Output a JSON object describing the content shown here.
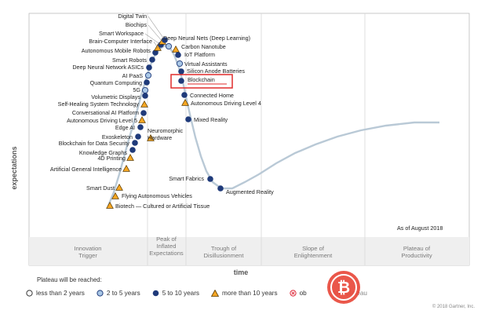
{
  "chart_data": {
    "type": "scatter",
    "title": "",
    "xlabel": "time",
    "ylabel": "expectations",
    "as_of": "As of August 2018",
    "phases": [
      {
        "name": "Innovation Trigger"
      },
      {
        "name": "Peak of Inflated Expectations"
      },
      {
        "name": "Trough of Disillusionment"
      },
      {
        "name": "Slope of Enlightenment"
      },
      {
        "name": "Plateau of Productivity"
      }
    ],
    "phase_labels": [
      [
        "Innovation",
        "Trigger"
      ],
      [
        "Peak of",
        "Inflated",
        "Expectations"
      ],
      [
        "Trough of",
        "Disillusionment"
      ],
      [
        "Slope of",
        "Enlightenment"
      ],
      [
        "Plateau of",
        "Productivity"
      ]
    ],
    "plateau_categories": [
      {
        "key": "lt2",
        "label": "less than 2 years",
        "marker": "circle-white"
      },
      {
        "key": "2to5",
        "label": "2 to 5 years",
        "marker": "circle-light-blue"
      },
      {
        "key": "5to10",
        "label": "5 to 10 years",
        "marker": "circle-dark-blue"
      },
      {
        "key": "gt10",
        "label": "more than 10 years",
        "marker": "triangle-orange"
      },
      {
        "key": "obsolete",
        "label": "obsolete before plateau",
        "marker": "x-circle-red"
      }
    ],
    "legend_visible_labels": [
      "less than 2 years",
      "2 to 5 years",
      "5 to 10 years",
      "more than 10 years",
      "ob",
      "fore plateau"
    ],
    "highlighted": "Blockchain",
    "technologies": [
      {
        "name": "Biotech — Cultured or Artificial Tissue",
        "t": 0.03,
        "plateau": "gt10"
      },
      {
        "name": "Flying Autonomous Vehicles",
        "t": 0.06,
        "plateau": "gt10"
      },
      {
        "name": "Smart Dust",
        "t": 0.09,
        "plateau": "gt10"
      },
      {
        "name": "Artificial General Intelligence",
        "t": 0.15,
        "plateau": "gt10"
      },
      {
        "name": "4D Printing",
        "t": 0.19,
        "plateau": "gt10"
      },
      {
        "name": "Knowledge Graphs",
        "t": 0.22,
        "plateau": "5to10"
      },
      {
        "name": "Blockchain for Data Security",
        "t": 0.25,
        "plateau": "5to10"
      },
      {
        "name": "Exoskeleton",
        "t": 0.28,
        "plateau": "5to10"
      },
      {
        "name": "Edge AI",
        "t": 0.33,
        "plateau": "5to10"
      },
      {
        "name": "Autonomous Driving Level 5",
        "t": 0.36,
        "plateau": "gt10"
      },
      {
        "name": "Conversational AI Platform",
        "t": 0.39,
        "plateau": "5to10"
      },
      {
        "name": "Self-Healing System Technology",
        "t": 0.42,
        "plateau": "gt10"
      },
      {
        "name": "Volumetric Displays",
        "t": 0.45,
        "plateau": "5to10"
      },
      {
        "name": "5G",
        "t": 0.49,
        "plateau": "2to5"
      },
      {
        "name": "Quantum Computing",
        "t": 0.52,
        "plateau": "5to10"
      },
      {
        "name": "AI PaaS",
        "t": 0.56,
        "plateau": "2to5"
      },
      {
        "name": "Deep Neural Network ASICs",
        "t": 0.59,
        "plateau": "5to10"
      },
      {
        "name": "Smart Robots",
        "t": 0.62,
        "plateau": "5to10"
      },
      {
        "name": "Autonomous Mobile Robots",
        "t": 0.67,
        "plateau": "5to10"
      },
      {
        "name": "Brain-Computer Interface",
        "t": 0.71,
        "plateau": "gt10"
      },
      {
        "name": "Smart Workspace",
        "t": 0.75,
        "plateau": "5to10"
      },
      {
        "name": "Biochips",
        "t": 0.79,
        "plateau": "gt10"
      },
      {
        "name": "Digital Twin",
        "t": 0.84,
        "plateau": "5to10"
      },
      {
        "name": "Deep Neural Nets (Deep Learning)",
        "t": 0.9,
        "plateau": "2to5"
      },
      {
        "name": "Carbon Nanotube",
        "t": 0.94,
        "plateau": "gt10"
      },
      {
        "name": "IoT Platform",
        "t": 0.97,
        "plateau": "5to10"
      },
      {
        "name": "Virtual Assistants",
        "t": 1.0,
        "plateau": "2to5"
      },
      {
        "name": "Silicon Anode Batteries",
        "t": 1.03,
        "plateau": "5to10"
      },
      {
        "name": "Blockchain",
        "t": 1.06,
        "plateau": "5to10"
      },
      {
        "name": "Connected Home",
        "t": 1.1,
        "plateau": "5to10"
      },
      {
        "name": "Autonomous Driving Level 4",
        "t": 1.13,
        "plateau": "gt10"
      },
      {
        "name": "Neuromorphic Hardware",
        "t": 0.0,
        "plateau": "gt10"
      },
      {
        "name": "Mixed Reality",
        "t": 1.2,
        "plateau": "5to10"
      },
      {
        "name": "Smart Fabrics",
        "t": 1.4,
        "plateau": "5to10"
      },
      {
        "name": "Augmented Reality",
        "t": 1.55,
        "plateau": "5to10"
      }
    ]
  },
  "footer": {
    "plateau_title": "Plateau will be reached:",
    "credit": "© 2018 Gartner, Inc."
  },
  "colors": {
    "dark_blue": "#1f3a7a",
    "light_blue": "#a9c7e6",
    "orange": "#f5a623",
    "highlight_red": "#e02b2b",
    "watermark": "#e8493b",
    "curve": "#b9c9d6"
  }
}
